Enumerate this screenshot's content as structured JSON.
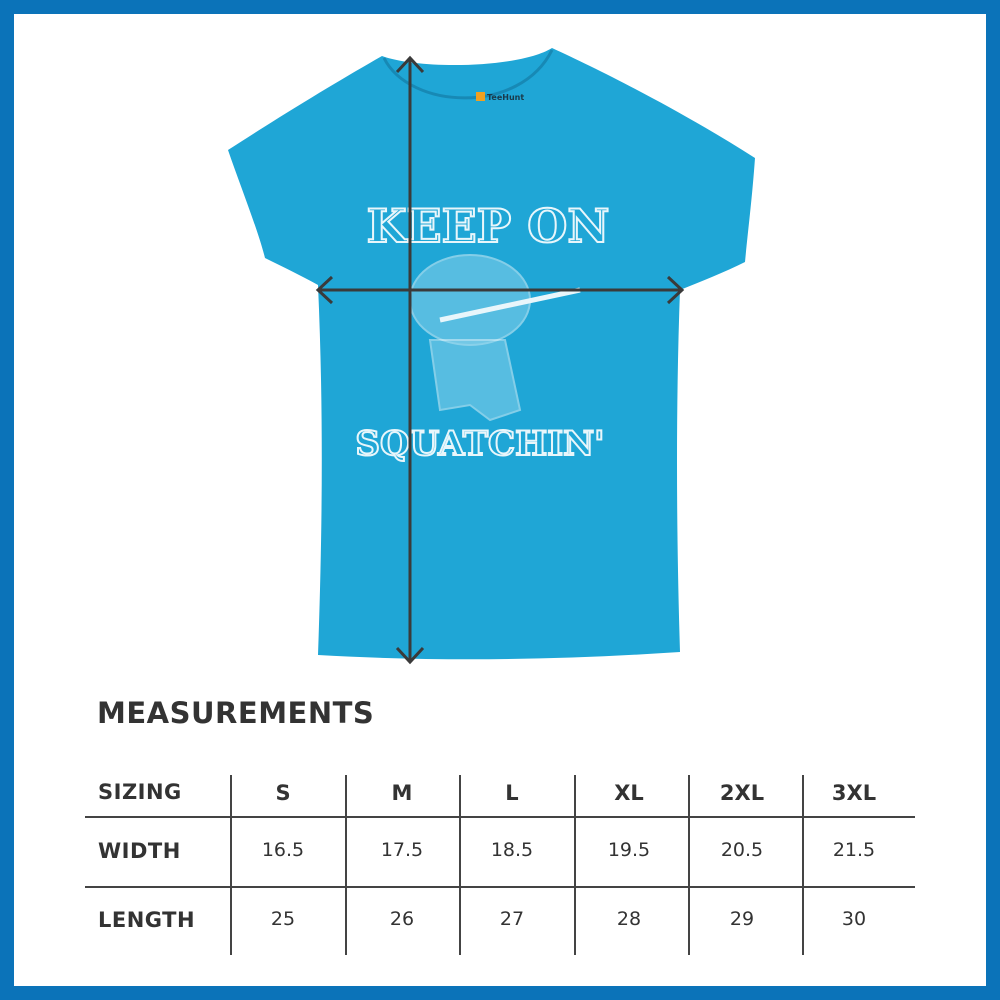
{
  "colors": {
    "border": "#0b73b9",
    "shirt": "#1fa6d6",
    "print": "#e8f6fb",
    "arrow": "#3a3a3a",
    "text": "#333333"
  },
  "graphic": {
    "line1": "KEEP ON",
    "line2": "SQUATCHIN'",
    "tag_brand": "TeeHunt"
  },
  "title": "MEASUREMENTS",
  "table": {
    "header_label": "SIZING",
    "sizes": [
      "S",
      "M",
      "L",
      "XL",
      "2XL",
      "3XL"
    ],
    "rows": [
      {
        "label": "WIDTH",
        "values": [
          "16.5",
          "17.5",
          "18.5",
          "19.5",
          "20.5",
          "21.5"
        ]
      },
      {
        "label": "LENGTH",
        "values": [
          "25",
          "26",
          "27",
          "28",
          "29",
          "30"
        ]
      }
    ]
  }
}
